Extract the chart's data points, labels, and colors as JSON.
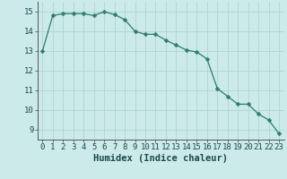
{
  "x": [
    0,
    1,
    2,
    3,
    4,
    5,
    6,
    7,
    8,
    9,
    10,
    11,
    12,
    13,
    14,
    15,
    16,
    17,
    18,
    19,
    20,
    21,
    22,
    23
  ],
  "y": [
    13.0,
    14.8,
    14.9,
    14.9,
    14.9,
    14.8,
    15.0,
    14.85,
    14.6,
    14.0,
    13.85,
    13.85,
    13.55,
    13.3,
    13.05,
    12.95,
    12.6,
    11.1,
    10.7,
    10.3,
    10.3,
    9.8,
    9.5,
    8.8
  ],
  "line_color": "#2e7d6e",
  "marker": "D",
  "marker_size": 2.5,
  "bg_color": "#cceaea",
  "grid_color": "#b0d4d4",
  "xlabel": "Humidex (Indice chaleur)",
  "xlim": [
    -0.5,
    23.5
  ],
  "ylim": [
    8.5,
    15.5
  ],
  "yticks": [
    9,
    10,
    11,
    12,
    13,
    14,
    15
  ],
  "xticks": [
    0,
    1,
    2,
    3,
    4,
    5,
    6,
    7,
    8,
    9,
    10,
    11,
    12,
    13,
    14,
    15,
    16,
    17,
    18,
    19,
    20,
    21,
    22,
    23
  ],
  "tick_fontsize": 6.5,
  "xlabel_fontsize": 7.5
}
